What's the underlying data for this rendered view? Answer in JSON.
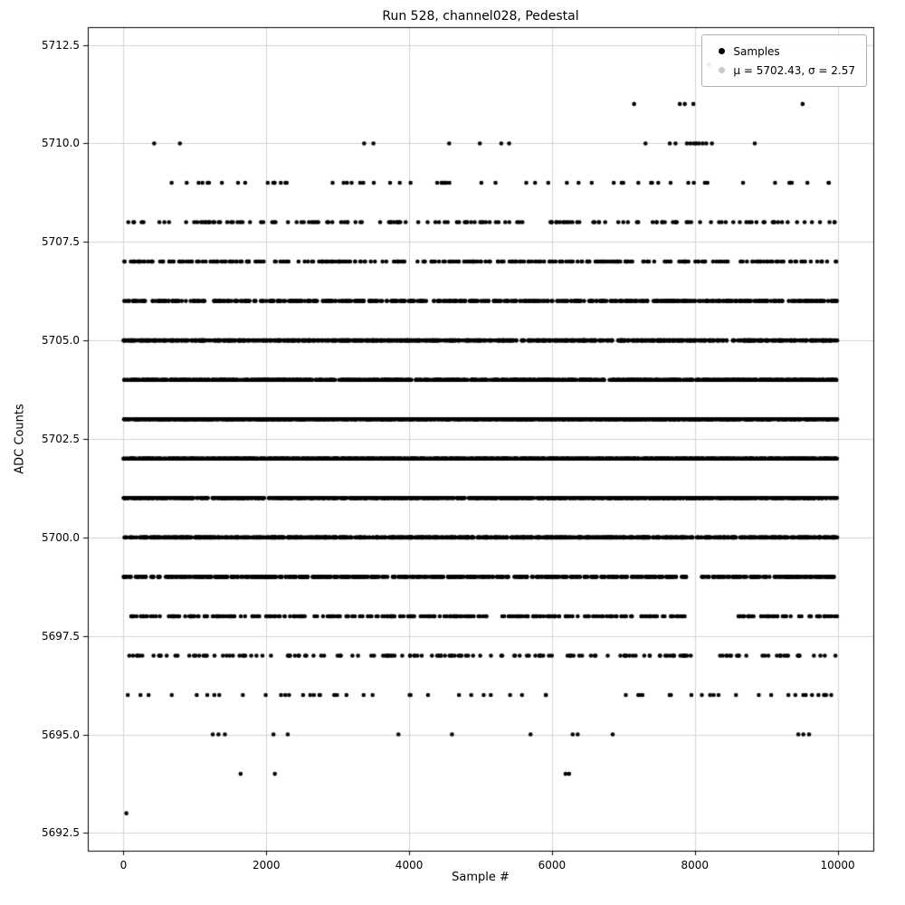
{
  "chart_data": {
    "type": "scatter",
    "title": "Run 528, channel028, Pedestal",
    "xlabel": "Sample #",
    "ylabel": "ADC Counts",
    "xlim": [
      -500,
      10500
    ],
    "ylim": [
      5692.05,
      5712.95
    ],
    "xticks": [
      0,
      2000,
      4000,
      6000,
      8000,
      10000
    ],
    "yticks": [
      5692.5,
      5695.0,
      5697.5,
      5700.0,
      5702.5,
      5705.0,
      5707.5,
      5710.0,
      5712.5
    ],
    "grid": true,
    "grid_color": "#d3d3d3",
    "spine_color": "#000000",
    "marker": {
      "shape": "circle",
      "color": "#000000",
      "radius": 2.3
    },
    "x_data_range": [
      0,
      9999
    ],
    "n_samples": 10000,
    "stats": {
      "mean": 5702.43,
      "sigma": 2.57
    },
    "legend": {
      "position": "upper right",
      "entries": [
        {
          "label": "Samples",
          "marker_color": "#000000"
        },
        {
          "label": "μ = 5702.43, σ = 2.57",
          "marker_color": "#c9c9c9"
        }
      ]
    },
    "levels": [
      {
        "adc": 5712,
        "xs": [
          8200
        ]
      },
      {
        "adc": 5711,
        "xs": [
          7150,
          7790,
          7860,
          7980,
          9510
        ]
      },
      {
        "adc": 5710,
        "xs": [
          430,
          790,
          3370,
          3500,
          4560,
          4990,
          5290,
          5400,
          7310,
          7650,
          7730,
          7890,
          7940,
          7990,
          8020,
          8060,
          8110,
          8160,
          8240,
          8840
        ]
      },
      {
        "adc": 5709,
        "count": 60
      },
      {
        "adc": 5708,
        "count": 150
      },
      {
        "adc": 5707,
        "count": 320
      },
      {
        "adc": 5706,
        "count": 590
      },
      {
        "adc": 5705,
        "count": 940
      },
      {
        "adc": 5704,
        "count": 1280
      },
      {
        "adc": 5703,
        "count": 1505
      },
      {
        "adc": 5702,
        "count": 1520
      },
      {
        "adc": 5701,
        "count": 1320
      },
      {
        "adc": 5700,
        "count": 990
      },
      {
        "adc": 5699,
        "count": 640,
        "gaps": [
          [
            7880,
            8090
          ]
        ]
      },
      {
        "adc": 5698,
        "count": 330,
        "gaps": [
          [
            7900,
            8600
          ]
        ]
      },
      {
        "adc": 5697,
        "count": 165,
        "gaps": [
          [
            7950,
            8350
          ]
        ]
      },
      {
        "adc": 5696,
        "count": 58
      },
      {
        "adc": 5695,
        "xs": [
          1250,
          1330,
          1420,
          2100,
          2300,
          3850,
          4600,
          5700,
          6290,
          6360,
          6850,
          9450,
          9520,
          9600
        ]
      },
      {
        "adc": 5694,
        "xs": [
          1640,
          2120,
          6190,
          6240
        ]
      },
      {
        "adc": 5693,
        "xs": [
          40
        ]
      }
    ]
  }
}
